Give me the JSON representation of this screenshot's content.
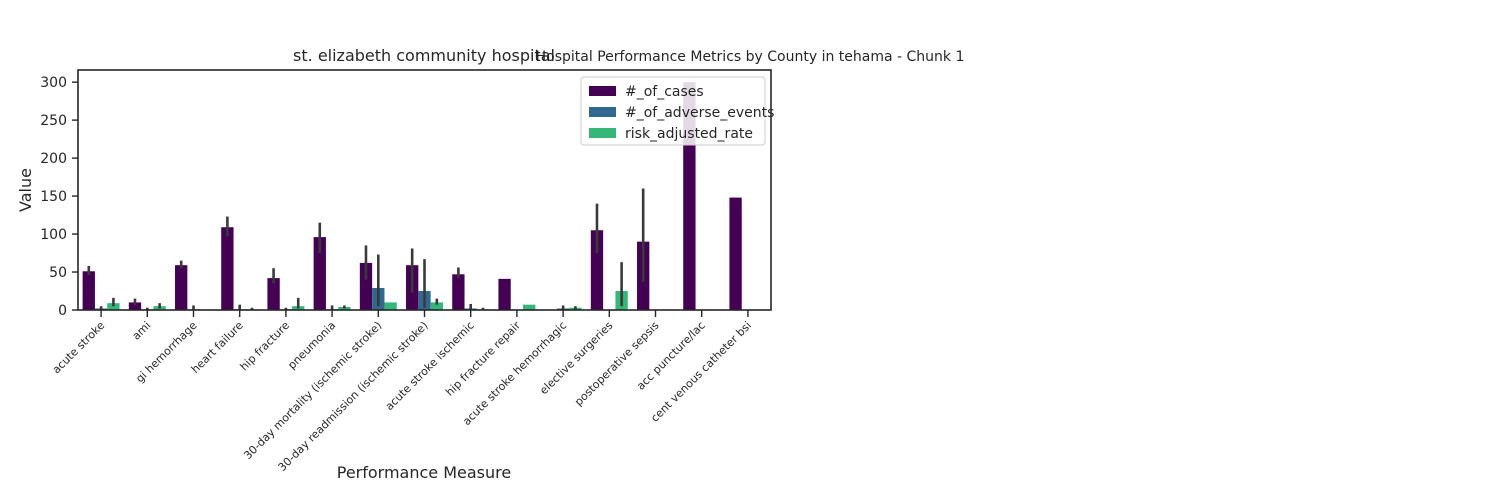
{
  "figure": {
    "suptitle": "Hospital Performance Metrics by County in tehama - Chunk 1"
  },
  "chart_data": {
    "type": "bar",
    "title": "st. elizabeth community hospital",
    "xlabel": "Performance Measure",
    "ylabel": "Value",
    "ylim": [
      0,
      316
    ],
    "yticks": [
      0,
      50,
      100,
      150,
      200,
      250,
      300
    ],
    "grid": false,
    "legend_position": "top-right",
    "categories": [
      "acute stroke",
      "ami",
      "gi hemorrhage",
      "heart failure",
      "hip fracture",
      "pneumonia",
      "30-day mortality (ischemic stroke)",
      "30-day readmission (ischemic stroke)",
      "acute stroke ischemic",
      "hip fracture repair",
      "acute stroke hemorrhagic",
      "elective surgeries",
      "postoperative sepsis",
      "acc puncture/lac",
      "cent venous catheter bsi"
    ],
    "series": [
      {
        "name": "#_of_cases",
        "color": "#440154",
        "values": [
          51,
          10,
          59,
          109,
          42,
          96,
          62,
          59,
          47,
          41,
          null,
          105,
          90,
          300,
          148
        ],
        "err_low": [
          46,
          6,
          55,
          97,
          35,
          75,
          40,
          23,
          42,
          null,
          null,
          75,
          37,
          null,
          null
        ],
        "err_high": [
          58,
          15,
          65,
          123,
          55,
          115,
          85,
          81,
          56,
          null,
          null,
          140,
          160,
          null,
          null
        ]
      },
      {
        "name": "#_of_adverse_events",
        "color": "#31688e",
        "values": [
          2,
          1,
          1,
          1,
          1,
          1,
          29,
          25,
          2,
          null,
          2,
          null,
          null,
          null,
          null
        ],
        "err_low": [
          0,
          0,
          0,
          0,
          0,
          0,
          5,
          3,
          0,
          null,
          0,
          null,
          null,
          null,
          null
        ],
        "err_high": [
          5,
          3,
          6,
          7,
          3,
          6,
          73,
          67,
          8,
          null,
          6,
          null,
          null,
          null,
          null
        ]
      },
      {
        "name": "risk_adjusted_rate",
        "color": "#35b779",
        "values": [
          9,
          5,
          null,
          1,
          5,
          4,
          10,
          10,
          1,
          7,
          3,
          25,
          null,
          null,
          null
        ],
        "err_low": [
          5,
          2,
          null,
          0,
          2,
          2,
          null,
          7,
          0,
          null,
          1,
          5,
          null,
          null,
          null
        ],
        "err_high": [
          16,
          9,
          null,
          3,
          16,
          6,
          null,
          15,
          3,
          null,
          5,
          63,
          null,
          null,
          null
        ]
      }
    ]
  }
}
